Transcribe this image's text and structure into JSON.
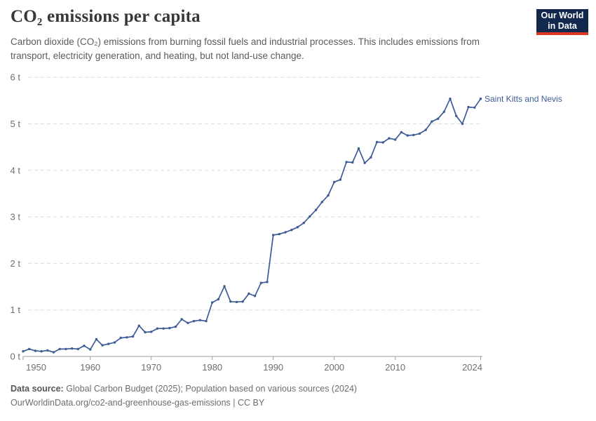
{
  "header": {
    "title": "CO₂ emissions per capita",
    "subtitle": "Carbon dioxide (CO₂) emissions from burning fossil fuels and industrial processes. This includes emissions from transport, electricity generation, and heating, but not land-use change.",
    "logo_line1": "Our World",
    "logo_line2": "in Data",
    "logo_bg_color": "#12294d",
    "logo_bar_color": "#dd3726"
  },
  "chart_data": {
    "type": "line",
    "title": "CO₂ emissions per capita",
    "series_label": "Saint Kitts and Nevis",
    "line_color": "#3d5c96",
    "grid_color": "#dcdcdc",
    "axis_color": "#9e9e9e",
    "tick_label_color": "#6e6e6e",
    "grid": "horizontal-dashed",
    "legend_position": "end-of-line",
    "xlim": [
      1949,
      2024
    ],
    "ylim": [
      0,
      6
    ],
    "y_ticks": [
      0,
      1,
      2,
      3,
      4,
      5,
      6
    ],
    "y_tick_suffix": " t",
    "x_ticks": [
      1950,
      1960,
      1970,
      1980,
      1990,
      2000,
      2010,
      2024
    ],
    "x": [
      1949,
      1950,
      1951,
      1952,
      1953,
      1954,
      1955,
      1956,
      1957,
      1958,
      1959,
      1960,
      1961,
      1962,
      1963,
      1964,
      1965,
      1966,
      1967,
      1968,
      1969,
      1970,
      1971,
      1972,
      1973,
      1974,
      1975,
      1976,
      1977,
      1978,
      1979,
      1980,
      1981,
      1982,
      1983,
      1984,
      1985,
      1986,
      1987,
      1988,
      1989,
      1990,
      1991,
      1992,
      1993,
      1994,
      1995,
      1996,
      1997,
      1998,
      1999,
      2000,
      2001,
      2002,
      2003,
      2004,
      2005,
      2006,
      2007,
      2008,
      2009,
      2010,
      2011,
      2012,
      2013,
      2014,
      2015,
      2016,
      2017,
      2018,
      2019,
      2020,
      2021,
      2022,
      2023,
      2024
    ],
    "values": [
      0.11,
      0.16,
      0.12,
      0.11,
      0.13,
      0.09,
      0.16,
      0.16,
      0.17,
      0.16,
      0.23,
      0.15,
      0.37,
      0.24,
      0.27,
      0.3,
      0.4,
      0.41,
      0.43,
      0.66,
      0.52,
      0.53,
      0.6,
      0.6,
      0.61,
      0.64,
      0.8,
      0.72,
      0.76,
      0.78,
      0.76,
      1.16,
      1.23,
      1.51,
      1.18,
      1.17,
      1.18,
      1.35,
      1.3,
      1.58,
      1.6,
      2.61,
      2.63,
      2.67,
      2.72,
      2.78,
      2.87,
      3.01,
      3.15,
      3.32,
      3.46,
      3.75,
      3.8,
      4.18,
      4.17,
      4.47,
      4.16,
      4.28,
      4.61,
      4.6,
      4.69,
      4.66,
      4.82,
      4.75,
      4.76,
      4.79,
      4.87,
      5.05,
      5.11,
      5.26,
      5.54,
      5.17,
      5.0,
      5.36,
      5.35,
      5.54
    ]
  },
  "footer": {
    "source_label": "Data source:",
    "source_text": "Global Carbon Budget (2025); Population based on various sources (2024)",
    "link_line": "OurWorldinData.org/co2-and-greenhouse-gas-emissions | CC BY"
  }
}
